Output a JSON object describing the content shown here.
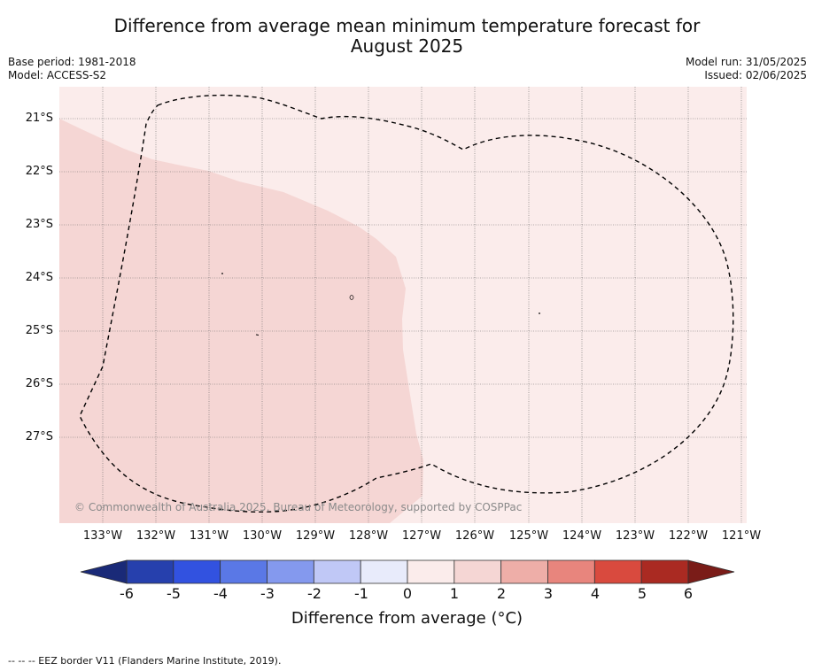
{
  "title": {
    "line1": "Difference from average mean minimum temperature forecast for",
    "line2": "August 2025"
  },
  "meta": {
    "base_period": "Base period: 1981-2018",
    "model": "Model: ACCESS-S2",
    "model_run": "Model run: 31/05/2025",
    "issued": "Issued: 02/06/2025"
  },
  "map": {
    "lat_labels": [
      "21°S",
      "22°S",
      "23°S",
      "24°S",
      "25°S",
      "26°S",
      "27°S"
    ],
    "lon_labels": [
      "133°W",
      "132°W",
      "131°W",
      "130°W",
      "129°W",
      "128°W",
      "127°W",
      "126°W",
      "125°W",
      "124°W",
      "123°W",
      "122°W",
      "121°W"
    ],
    "fill_light": "#fbeceb",
    "fill_dark": "#f5d6d4",
    "watermark": "© Commonwealth of Australia 2025, Bureau of Meteorology, supported by COSPPac"
  },
  "colorbar": {
    "ticks": [
      "-6",
      "-5",
      "-4",
      "-3",
      "-2",
      "-1",
      "0",
      "1",
      "2",
      "3",
      "4",
      "5",
      "6"
    ],
    "colors": [
      "#2640ad",
      "#3252e0",
      "#5a78e6",
      "#8499ee",
      "#c0c8f6",
      "#e8ebfb",
      "#fbeceb",
      "#f5d6d4",
      "#eeaea8",
      "#e8857d",
      "#d94a3e",
      "#aa2a22"
    ],
    "under_color": "#1a2a78",
    "over_color": "#7a1c18",
    "label": "Difference from average (°C)"
  },
  "footer": "--  --  -- EEZ border V11 (Flanders Marine Institute, 2019)."
}
